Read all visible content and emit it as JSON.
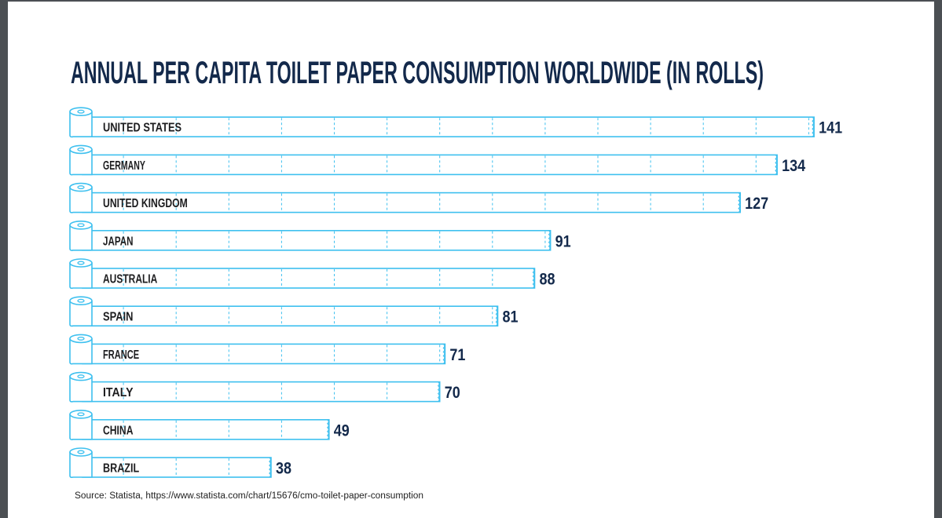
{
  "chart_data": {
    "type": "bar",
    "orientation": "horizontal",
    "title": "ANNUAL PER CAPITA TOILET PAPER CONSUMPTION WORLDWIDE (IN ROLLS)",
    "categories": [
      "UNITED STATES",
      "GERMANY",
      "UNITED KINGDOM",
      "JAPAN",
      "AUSTRALIA",
      "SPAIN",
      "FRANCE",
      "ITALY",
      "CHINA",
      "BRAZIL"
    ],
    "values": [
      141,
      134,
      127,
      91,
      88,
      81,
      71,
      70,
      49,
      38
    ],
    "unit": "rolls",
    "xlim": [
      0,
      145
    ],
    "grid_step": 10,
    "grid": true,
    "source": "Source: Statista, https://www.statista.com/chart/15676/cmo-toilet-paper-consumption",
    "colors": {
      "bar_outline": "#3ec0ef",
      "title": "#13294b",
      "value": "#13294b"
    }
  }
}
